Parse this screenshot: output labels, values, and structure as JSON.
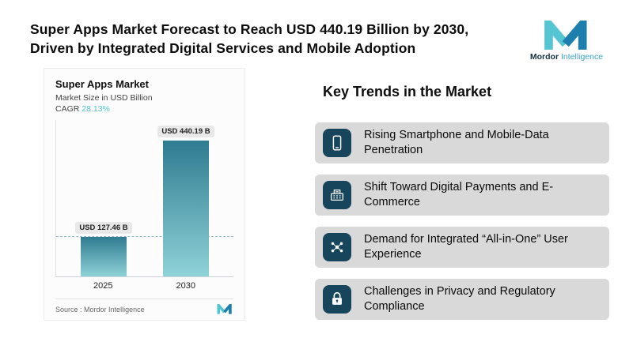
{
  "header": {
    "title_line1": "Super Apps Market Forecast to Reach USD 440.19 Billion by 2030,",
    "title_line2": "Driven by Integrated Digital Services and Mobile Adoption",
    "logo_text_primary": "Mordor",
    "logo_text_secondary": "Intelligence"
  },
  "chart": {
    "title": "Super Apps Market",
    "subtitle": "Market Size in USD Billion",
    "cagr_label": "CAGR",
    "cagr_value": "28.13%",
    "source_label": "Source :",
    "source_value": "Mordor Intelligence"
  },
  "chart_data": {
    "type": "bar",
    "categories": [
      "2025",
      "2030"
    ],
    "values": [
      127.46,
      440.19
    ],
    "bar_labels": [
      "USD 127.46 B",
      "USD 440.19 B"
    ],
    "title": "Super Apps Market",
    "ylabel": "Market Size in USD Billion",
    "cagr": "28.13%",
    "ylim": [
      0,
      480
    ],
    "grid": false,
    "reference_line": 127.46,
    "legend": "none"
  },
  "trends": {
    "heading": "Key Trends in the Market",
    "items": [
      {
        "icon": "smartphone-icon",
        "text": "Rising Smartphone and Mobile-Data Penetration"
      },
      {
        "icon": "payment-terminal-icon",
        "text": "Shift Toward Digital Payments and E-Commerce"
      },
      {
        "icon": "network-icon",
        "text": "Demand for Integrated “All-in-One” User Experience"
      },
      {
        "icon": "lock-icon",
        "text": "Challenges in Privacy and Regulatory Compliance"
      }
    ]
  },
  "colors": {
    "accent_teal": "#4fc3d1",
    "icon_box_teal": "#16455c",
    "bar_gradient_top": "#2f7b90",
    "bar_gradient_bottom": "#8fd2d8",
    "trend_row_bg": "#d9d9d9",
    "logo_light": "#56c5d3",
    "logo_dark": "#1d7fae"
  }
}
